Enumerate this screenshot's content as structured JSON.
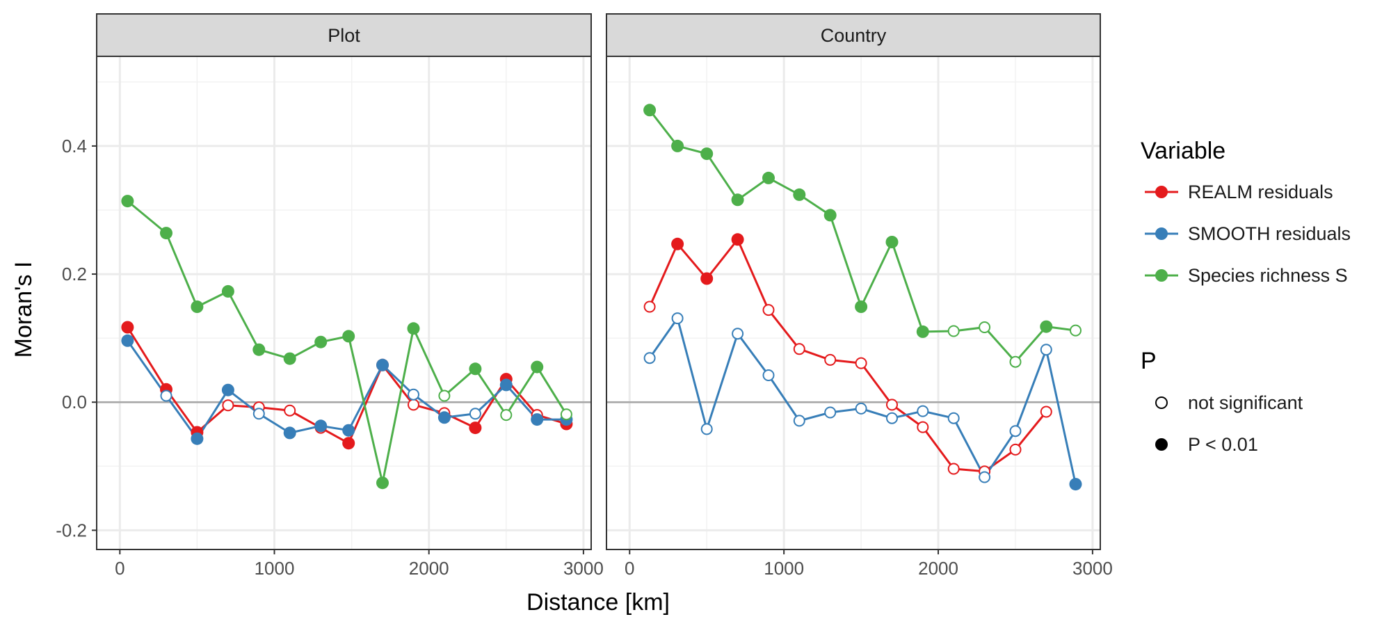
{
  "chart_data": {
    "type": "line",
    "facets": [
      "Plot",
      "Country"
    ],
    "xlabel": "Distance [km]",
    "ylabel": "Moran's I",
    "xlim": [
      -150,
      3050
    ],
    "ylim": [
      -0.23,
      0.54
    ],
    "x_ticks": [
      0,
      1000,
      2000,
      3000
    ],
    "x_tick_labels": [
      "0",
      "1000",
      "2000",
      "3000"
    ],
    "y_ticks": [
      -0.2,
      0.0,
      0.2,
      0.4
    ],
    "y_tick_labels": [
      "-0.2",
      "0.0",
      "0.2",
      "0.4"
    ],
    "reference_line_y": 0,
    "grid": true,
    "legend_position": "right",
    "legend": {
      "color_title": "Variable",
      "color_entries": [
        {
          "label": "REALM residuals",
          "color": "#E41A1C"
        },
        {
          "label": "SMOOTH residuals",
          "color": "#377EB8"
        },
        {
          "label": "Species richness S",
          "color": "#4DAF4A"
        }
      ],
      "shape_title": "P",
      "shape_entries": [
        {
          "label": "not significant",
          "filled": false
        },
        {
          "label": "P < 0.01",
          "filled": true
        }
      ]
    },
    "panels": [
      {
        "facet": "Plot",
        "series": [
          {
            "name": "REALM residuals",
            "color": "#E41A1C",
            "x": [
              50,
              300,
              500,
              700,
              900,
              1100,
              1300,
              1480,
              1700,
              1900,
              2100,
              2300,
              2500,
              2700,
              2890
            ],
            "y": [
              0.117,
              0.02,
              -0.047,
              -0.005,
              -0.008,
              -0.013,
              -0.04,
              -0.064,
              0.058,
              -0.004,
              -0.017,
              -0.04,
              0.036,
              -0.02,
              -0.034
            ],
            "significant": [
              true,
              true,
              true,
              false,
              false,
              false,
              false,
              true,
              true,
              false,
              false,
              true,
              true,
              false,
              true
            ]
          },
          {
            "name": "SMOOTH residuals",
            "color": "#377EB8",
            "x": [
              50,
              300,
              500,
              700,
              900,
              1100,
              1300,
              1480,
              1700,
              1900,
              2100,
              2300,
              2500,
              2700,
              2890
            ],
            "y": [
              0.096,
              0.01,
              -0.057,
              0.019,
              -0.018,
              -0.048,
              -0.037,
              -0.044,
              0.058,
              0.012,
              -0.024,
              -0.018,
              0.027,
              -0.027,
              -0.027
            ],
            "significant": [
              true,
              false,
              true,
              true,
              false,
              true,
              true,
              true,
              true,
              false,
              true,
              false,
              true,
              true,
              true
            ]
          },
          {
            "name": "Species richness S",
            "color": "#4DAF4A",
            "x": [
              50,
              300,
              500,
              700,
              900,
              1100,
              1300,
              1480,
              1700,
              1900,
              2100,
              2300,
              2500,
              2700,
              2890
            ],
            "y": [
              0.314,
              0.264,
              0.149,
              0.173,
              0.082,
              0.068,
              0.094,
              0.103,
              -0.126,
              0.115,
              0.01,
              0.052,
              -0.02,
              0.055,
              -0.019
            ],
            "significant": [
              true,
              true,
              true,
              true,
              true,
              true,
              true,
              true,
              true,
              true,
              false,
              true,
              false,
              true,
              false
            ]
          }
        ]
      },
      {
        "facet": "Country",
        "series": [
          {
            "name": "REALM residuals",
            "color": "#E41A1C",
            "x": [
              130,
              310,
              500,
              700,
              900,
              1100,
              1300,
              1500,
              1700,
              1900,
              2100,
              2300,
              2500,
              2700
            ],
            "y": [
              0.149,
              0.247,
              0.193,
              0.254,
              0.144,
              0.083,
              0.066,
              0.061,
              -0.004,
              -0.039,
              -0.104,
              -0.108,
              -0.074,
              -0.015
            ],
            "significant": [
              false,
              true,
              true,
              true,
              false,
              false,
              false,
              false,
              false,
              false,
              false,
              false,
              false,
              false
            ]
          },
          {
            "name": "SMOOTH residuals",
            "color": "#377EB8",
            "x": [
              130,
              310,
              500,
              700,
              900,
              1100,
              1300,
              1500,
              1700,
              1900,
              2100,
              2300,
              2500,
              2700,
              2890
            ],
            "y": [
              0.069,
              0.131,
              -0.042,
              0.107,
              0.042,
              -0.029,
              -0.016,
              -0.01,
              -0.025,
              -0.014,
              -0.025,
              -0.117,
              -0.045,
              0.082,
              -0.128
            ],
            "significant": [
              false,
              false,
              false,
              false,
              false,
              false,
              false,
              false,
              false,
              false,
              false,
              false,
              false,
              false,
              true
            ]
          },
          {
            "name": "Species richness S",
            "color": "#4DAF4A",
            "x": [
              130,
              310,
              500,
              700,
              900,
              1100,
              1300,
              1500,
              1700,
              1900,
              2100,
              2300,
              2500,
              2700,
              2890
            ],
            "y": [
              0.456,
              0.4,
              0.388,
              0.316,
              0.35,
              0.324,
              0.292,
              0.149,
              0.25,
              0.11,
              0.111,
              0.117,
              0.063,
              0.118,
              0.112
            ],
            "significant": [
              true,
              true,
              true,
              true,
              true,
              true,
              true,
              true,
              true,
              true,
              false,
              false,
              false,
              true,
              false
            ]
          }
        ]
      }
    ]
  }
}
